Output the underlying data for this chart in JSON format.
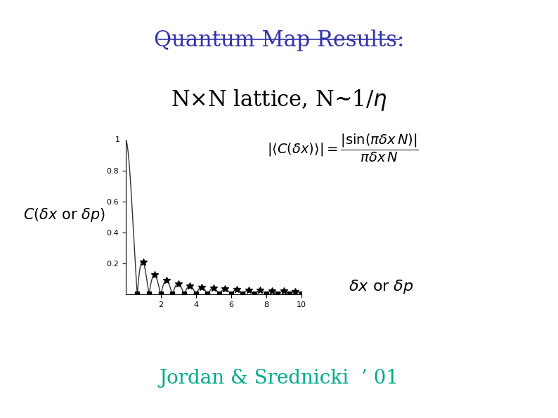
{
  "title": "Quantum Map Results:",
  "title_color": "#3333aa",
  "title_fontsize": 22,
  "lattice_fontsize": 22,
  "citation": "Jordan & Srednicki  ’ 01",
  "citation_color": "#00aa88",
  "citation_fontsize": 20,
  "xmin": 0,
  "xmax": 10,
  "ymin": 0,
  "ymax": 1.0,
  "yticks": [
    0.2,
    0.4,
    0.6,
    0.8
  ],
  "xticks": [
    2,
    4,
    6,
    8,
    10
  ],
  "background": "#ffffff",
  "plot_line_color": "#333333",
  "star_color": "#000000",
  "square_color": "#000000",
  "N_sinc": 1.5
}
